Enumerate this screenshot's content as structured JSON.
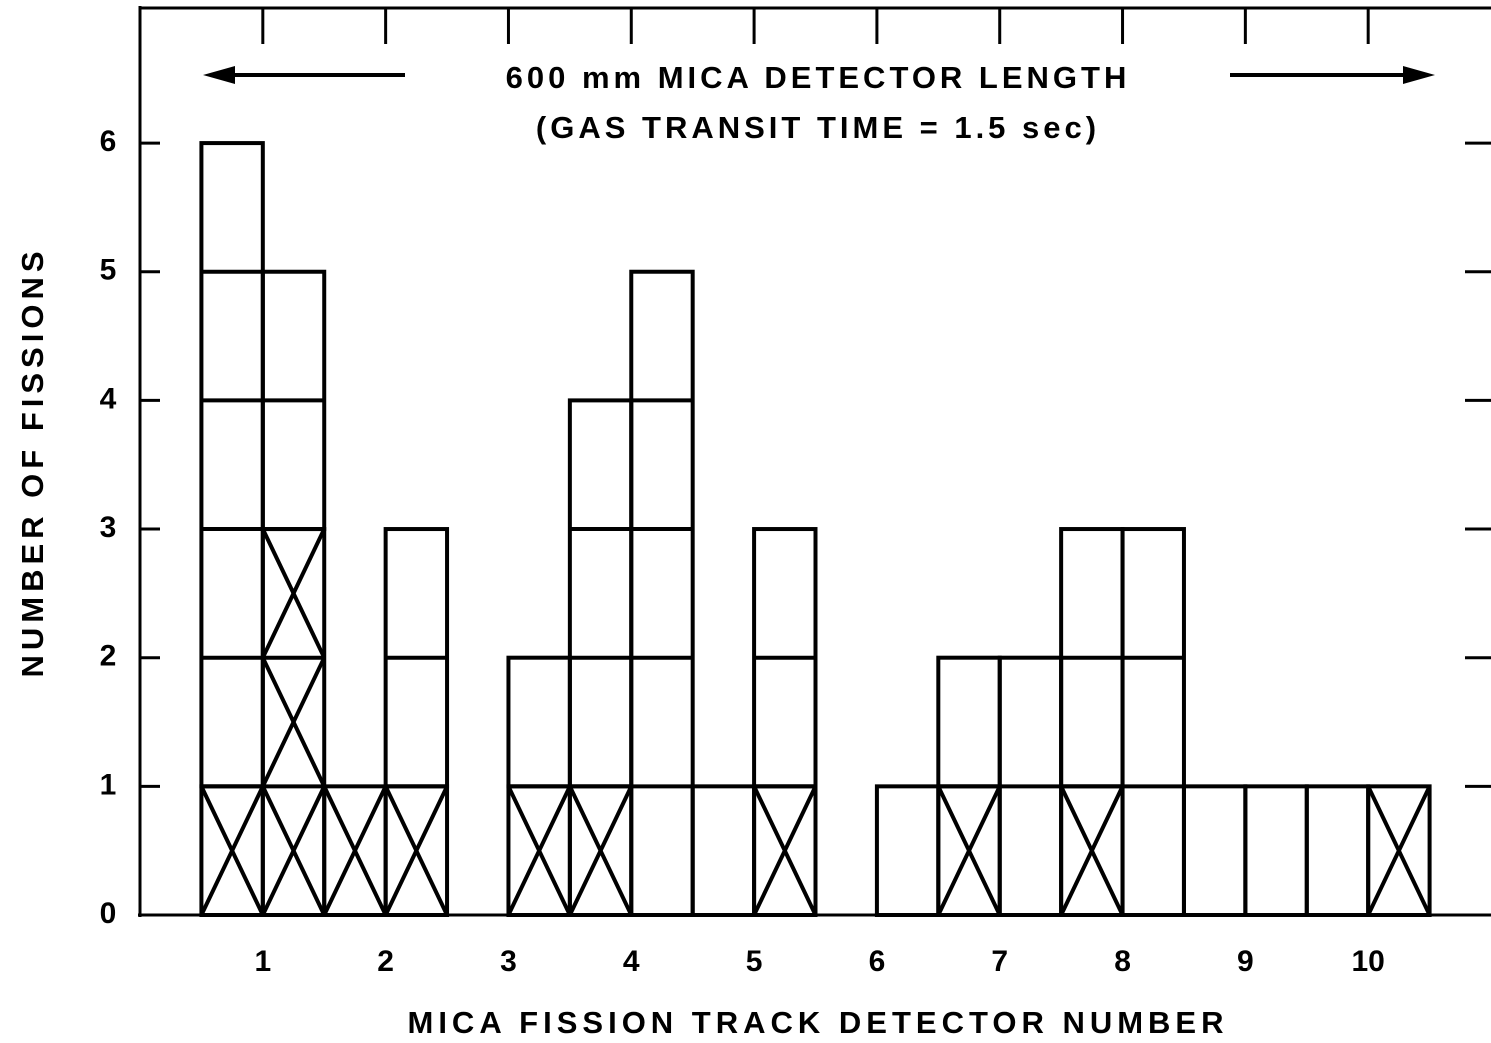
{
  "chart_data": {
    "type": "histogram",
    "xlabel": "MICA FISSION TRACK DETECTOR NUMBER",
    "ylabel": "NUMBER OF FISSIONS",
    "annotations": [
      "600 mm MICA DETECTOR LENGTH",
      "(GAS TRANSIT TIME = 1.5 sec)"
    ],
    "bins": [
      0.5,
      1,
      1.5,
      2,
      2.5,
      3,
      3.5,
      4,
      4.5,
      5,
      5.5,
      6,
      6.5,
      7,
      7.5,
      8,
      8.5,
      9,
      9.5,
      10,
      10.5
    ],
    "series": [
      {
        "pattern": "cross",
        "color": "#000000",
        "values": [
          1,
          3,
          1,
          1,
          0,
          1,
          1,
          0,
          0,
          1,
          0,
          0,
          1,
          0,
          1,
          0,
          0,
          0,
          0,
          1
        ]
      },
      {
        "pattern": "none",
        "color": "#000000",
        "values": [
          5,
          2,
          0,
          2,
          0,
          1,
          3,
          5,
          1,
          2,
          0,
          1,
          1,
          2,
          2,
          3,
          1,
          1,
          1,
          0
        ]
      }
    ],
    "xlim": [
      0,
      11
    ],
    "xticks": [
      1,
      2,
      3,
      4,
      5,
      6,
      7,
      8,
      9,
      10
    ],
    "ylim": [
      0,
      7.05
    ],
    "yticks": [
      0,
      1,
      2,
      3,
      4,
      5,
      6
    ],
    "grid": false
  }
}
